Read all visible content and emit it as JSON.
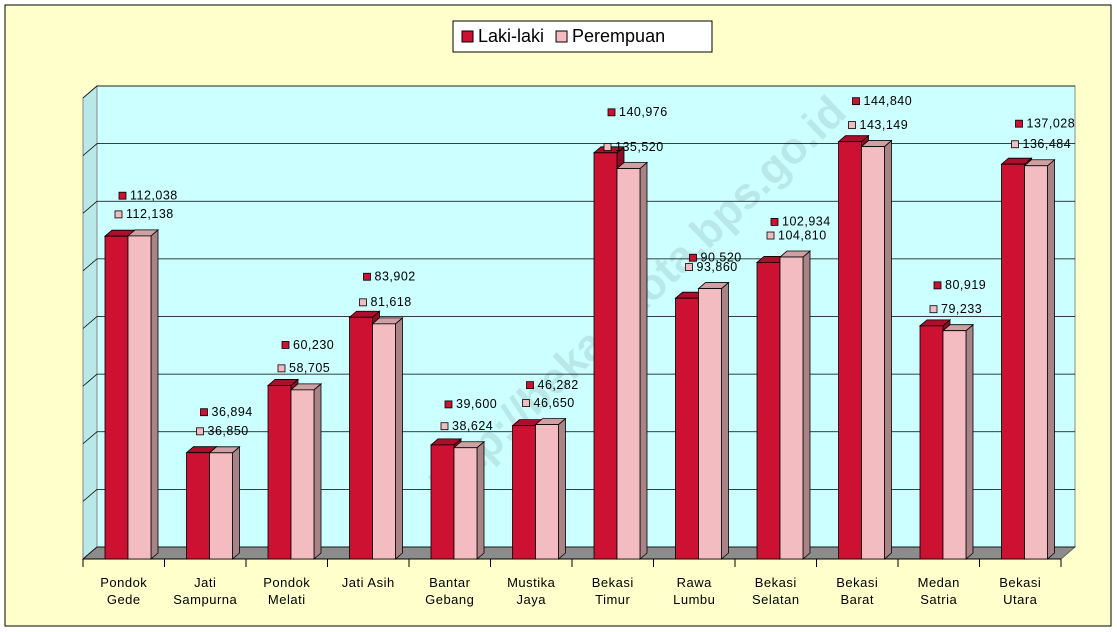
{
  "chart_data": {
    "type": "bar",
    "watermark": "http://bekasikota.bps.go.id",
    "categories": [
      "Pondok\nGede",
      "Jati\nSampurna",
      "Pondok\nMelati",
      "Jati Asih",
      "Bantar\nGebang",
      "Mustika\nJaya",
      "Bekasi\nTimur",
      "Rawa\nLumbu",
      "Bekasi\nSelatan",
      "Bekasi\nBarat",
      "Medan\nSatria",
      "Bekasi\nUtara"
    ],
    "series": [
      {
        "name": "Laki-laki",
        "color": "#cc1133",
        "values": [
          112038,
          36894,
          60230,
          83902,
          39600,
          46282,
          140976,
          90520,
          102934,
          144840,
          80919,
          137028
        ],
        "value_labels": [
          "112,038",
          "36,894",
          "60,230",
          "83,902",
          "39,600",
          "46,282",
          "140,976",
          "90,520",
          "102,934",
          "144,840",
          "80,919",
          "137,028"
        ]
      },
      {
        "name": "Perempuan",
        "color": "#f2bcc0",
        "values": [
          112138,
          36850,
          58705,
          81618,
          38624,
          46650,
          135520,
          93860,
          104810,
          143149,
          79233,
          136484
        ],
        "value_labels": [
          "112,138",
          "36,850",
          "58,705",
          "81,618",
          "38,624",
          "46,650",
          "135,520",
          "93,860",
          "104,810",
          "143,149",
          "79,233",
          "136,484"
        ]
      }
    ],
    "ylim": [
      0,
      160000
    ],
    "yticks": [
      0,
      20000,
      40000,
      60000,
      80000,
      100000,
      120000,
      140000,
      160000
    ],
    "grid": true,
    "legend": "top"
  }
}
